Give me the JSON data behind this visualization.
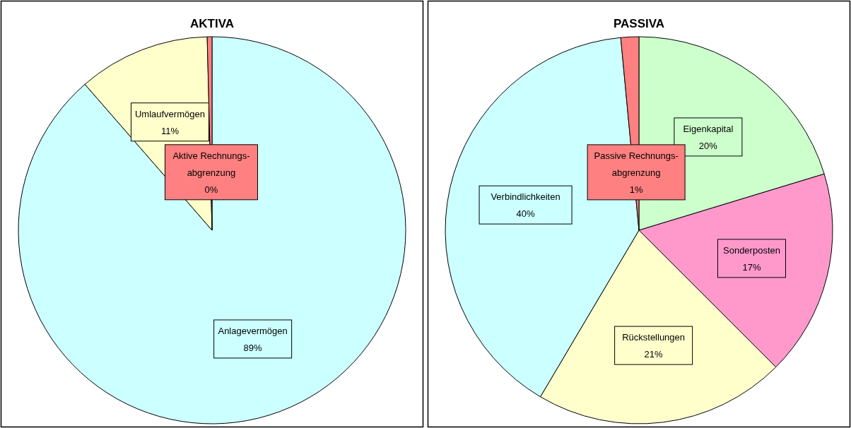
{
  "chart_data": [
    {
      "type": "pie",
      "title": "AKTIVA",
      "categories": [
        "Anlagevermögen",
        "Umlaufvermögen",
        "Aktive Rechnungs-abgrenzung"
      ],
      "values": [
        88.6,
        11,
        0.4
      ],
      "value_labels": [
        "89%",
        "11%",
        "0%"
      ],
      "colors": [
        "#ccffff",
        "#ffffcc",
        "#ff8080"
      ]
    },
    {
      "type": "pie",
      "title": "PASSIVA",
      "categories": [
        "Eigenkapital",
        "Sonderposten",
        "Rückstellungen",
        "Verbindlichkeiten",
        "Passive Rechnungs-abgrenzung"
      ],
      "values": [
        20.3,
        17.2,
        21,
        40,
        1.5
      ],
      "value_labels": [
        "20%",
        "17%",
        "21%",
        "40%",
        "1%"
      ],
      "colors": [
        "#ccffcc",
        "#ff99cc",
        "#ffffcc",
        "#ccffff",
        "#ff8080"
      ]
    }
  ]
}
